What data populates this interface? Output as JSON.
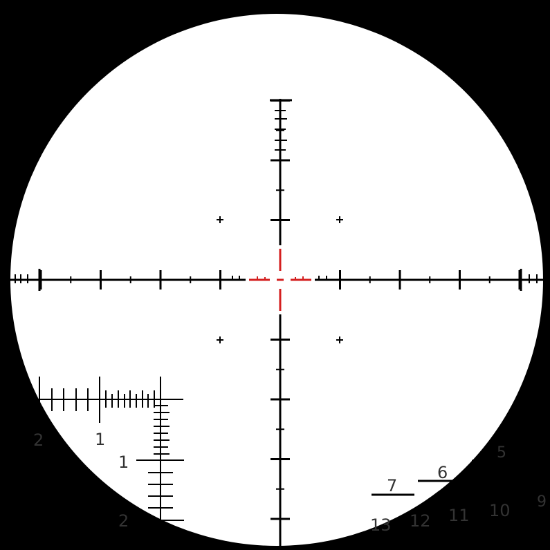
{
  "reticle": {
    "colors": {
      "ink": "#000000",
      "field": "#ffffff",
      "center": "#d42020",
      "label": "#333333"
    },
    "stadia_labels": {
      "upper_scale_1": "1",
      "vertical_scale_1": "1",
      "left_edge_2": "2",
      "lower_left_2": "2"
    },
    "range_labels": {
      "r7": "7",
      "r6": "6",
      "r5": "5",
      "r13": "13",
      "r12": "12",
      "r11": "11",
      "r10": "10",
      "r9": "9"
    }
  }
}
